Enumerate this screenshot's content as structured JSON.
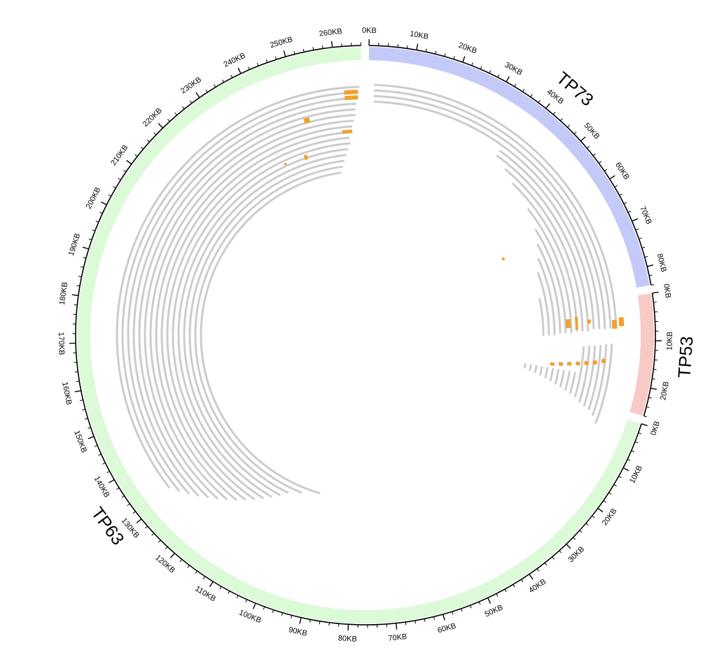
{
  "diagram": {
    "type": "circos-genome-plot",
    "segments": [
      {
        "name": "TP73",
        "length_kb": 84,
        "color": "#c4caf8"
      },
      {
        "name": "TP53",
        "length_kb": 26,
        "color": "#f8cac6"
      },
      {
        "name": "TP63",
        "length_kb": 266,
        "color": "#dcfad8"
      }
    ],
    "tick_labels": {
      "TP73": [
        "0KB",
        "10KB",
        "20KB",
        "30KB",
        "40KB",
        "50KB",
        "60KB",
        "70KB",
        "80KB"
      ],
      "TP53": [
        "0KB",
        "10KB",
        "20KB"
      ],
      "TP63": [
        "0KB",
        "10KB",
        "20KB",
        "30KB",
        "40KB",
        "50KB",
        "60KB",
        "70KB",
        "80KB",
        "90KB",
        "100KB",
        "110KB",
        "120KB",
        "130KB",
        "140KB",
        "150KB",
        "160KB",
        "170KB",
        "180KB",
        "190KB",
        "200KB",
        "210KB",
        "220KB",
        "230KB",
        "240KB",
        "250KB",
        "260KB"
      ]
    },
    "track_color": "#cccccc",
    "feature_color": "#f0a030"
  }
}
